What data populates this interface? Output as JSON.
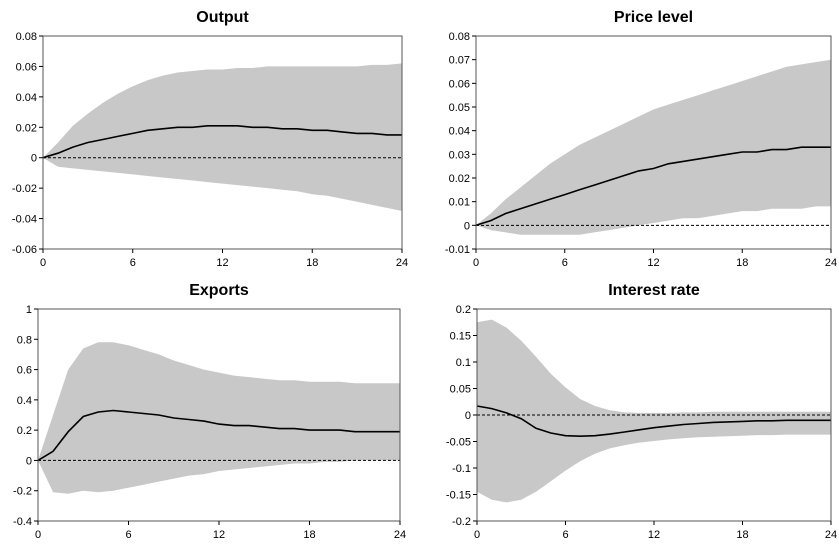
{
  "chart_data": [
    {
      "type": "line",
      "title": "Output",
      "x": [
        0,
        1,
        2,
        3,
        4,
        5,
        6,
        7,
        8,
        9,
        10,
        11,
        12,
        13,
        14,
        15,
        16,
        17,
        18,
        19,
        20,
        21,
        22,
        23,
        24
      ],
      "xticks": [
        0,
        6,
        12,
        18,
        24
      ],
      "ylim": [
        -0.06,
        0.08
      ],
      "yticks": [
        -0.06,
        -0.04,
        -0.02,
        0,
        0.02,
        0.04,
        0.06,
        0.08
      ],
      "ytick_labels": [
        "-0.06",
        "-0.04",
        "-0.02",
        "0",
        "0.02",
        "0.04",
        "0.06",
        "0.08"
      ],
      "colors": {
        "band": "#c8c8c8",
        "line": "#000000",
        "zero": "#000000"
      },
      "series": [
        {
          "role": "band",
          "upper": [
            0,
            0.01,
            0.021,
            0.029,
            0.036,
            0.042,
            0.047,
            0.051,
            0.054,
            0.056,
            0.057,
            0.058,
            0.058,
            0.059,
            0.059,
            0.06,
            0.06,
            0.06,
            0.06,
            0.06,
            0.06,
            0.06,
            0.061,
            0.061,
            0.062
          ],
          "lower": [
            0,
            -0.006,
            -0.007,
            -0.008,
            -0.009,
            -0.01,
            -0.011,
            -0.012,
            -0.013,
            -0.014,
            -0.015,
            -0.016,
            -0.017,
            -0.018,
            -0.019,
            -0.02,
            -0.021,
            -0.022,
            -0.024,
            -0.025,
            -0.027,
            -0.029,
            -0.031,
            -0.033,
            -0.035
          ]
        },
        {
          "role": "line",
          "values": [
            0,
            0.003,
            0.007,
            0.01,
            0.012,
            0.014,
            0.016,
            0.018,
            0.019,
            0.02,
            0.02,
            0.021,
            0.021,
            0.021,
            0.02,
            0.02,
            0.019,
            0.019,
            0.018,
            0.018,
            0.017,
            0.016,
            0.016,
            0.015,
            0.015
          ]
        }
      ]
    },
    {
      "type": "line",
      "title": "Price level",
      "x": [
        0,
        1,
        2,
        3,
        4,
        5,
        6,
        7,
        8,
        9,
        10,
        11,
        12,
        13,
        14,
        15,
        16,
        17,
        18,
        19,
        20,
        21,
        22,
        23,
        24
      ],
      "xticks": [
        0,
        6,
        12,
        18,
        24
      ],
      "ylim": [
        -0.01,
        0.08
      ],
      "yticks": [
        -0.01,
        0,
        0.01,
        0.02,
        0.03,
        0.04,
        0.05,
        0.06,
        0.07,
        0.08
      ],
      "ytick_labels": [
        "-0.01",
        "0",
        "0.01",
        "0.02",
        "0.03",
        "0.04",
        "0.05",
        "0.06",
        "0.07",
        "0.08"
      ],
      "colors": {
        "band": "#c8c8c8",
        "line": "#000000",
        "zero": "#000000"
      },
      "series": [
        {
          "role": "band",
          "upper": [
            0,
            0.005,
            0.011,
            0.016,
            0.021,
            0.026,
            0.03,
            0.034,
            0.037,
            0.04,
            0.043,
            0.046,
            0.049,
            0.051,
            0.053,
            0.055,
            0.057,
            0.059,
            0.061,
            0.063,
            0.065,
            0.067,
            0.068,
            0.069,
            0.07
          ],
          "lower": [
            0,
            -0.002,
            -0.003,
            -0.004,
            -0.004,
            -0.004,
            -0.004,
            -0.004,
            -0.003,
            -0.002,
            -0.001,
            0,
            0.001,
            0.002,
            0.003,
            0.003,
            0.004,
            0.005,
            0.006,
            0.006,
            0.007,
            0.007,
            0.007,
            0.008,
            0.008
          ]
        },
        {
          "role": "line",
          "values": [
            0,
            0.002,
            0.005,
            0.007,
            0.009,
            0.011,
            0.013,
            0.015,
            0.017,
            0.019,
            0.021,
            0.023,
            0.024,
            0.026,
            0.027,
            0.028,
            0.029,
            0.03,
            0.031,
            0.031,
            0.032,
            0.032,
            0.033,
            0.033,
            0.033
          ]
        }
      ]
    },
    {
      "type": "line",
      "title": "Exports",
      "x": [
        0,
        1,
        2,
        3,
        4,
        5,
        6,
        7,
        8,
        9,
        10,
        11,
        12,
        13,
        14,
        15,
        16,
        17,
        18,
        19,
        20,
        21,
        22,
        23,
        24
      ],
      "xticks": [
        0,
        6,
        12,
        18,
        24
      ],
      "ylim": [
        -0.4,
        1
      ],
      "yticks": [
        -0.4,
        -0.2,
        0,
        0.2,
        0.4,
        0.6,
        0.8,
        1
      ],
      "ytick_labels": [
        "-0.4",
        "-0.2",
        "0",
        "0.2",
        "0.4",
        "0.6",
        "0.8",
        "1"
      ],
      "colors": {
        "band": "#c8c8c8",
        "line": "#000000",
        "zero": "#000000"
      },
      "series": [
        {
          "role": "band",
          "upper": [
            0,
            0.3,
            0.6,
            0.74,
            0.78,
            0.78,
            0.76,
            0.73,
            0.7,
            0.66,
            0.63,
            0.6,
            0.58,
            0.56,
            0.55,
            0.54,
            0.53,
            0.53,
            0.52,
            0.52,
            0.52,
            0.51,
            0.51,
            0.51,
            0.51
          ],
          "lower": [
            0,
            -0.21,
            -0.22,
            -0.2,
            -0.21,
            -0.2,
            -0.18,
            -0.16,
            -0.14,
            -0.12,
            -0.1,
            -0.09,
            -0.07,
            -0.06,
            -0.05,
            -0.04,
            -0.03,
            -0.02,
            -0.02,
            -0.01,
            -0.01,
            0,
            0,
            0,
            0
          ]
        },
        {
          "role": "line",
          "values": [
            0,
            0.06,
            0.19,
            0.29,
            0.32,
            0.33,
            0.32,
            0.31,
            0.3,
            0.28,
            0.27,
            0.26,
            0.24,
            0.23,
            0.23,
            0.22,
            0.21,
            0.21,
            0.2,
            0.2,
            0.2,
            0.19,
            0.19,
            0.19,
            0.19
          ]
        }
      ]
    },
    {
      "type": "line",
      "title": "Interest rate",
      "x": [
        0,
        1,
        2,
        3,
        4,
        5,
        6,
        7,
        8,
        9,
        10,
        11,
        12,
        13,
        14,
        15,
        16,
        17,
        18,
        19,
        20,
        21,
        22,
        23,
        24
      ],
      "xticks": [
        0,
        6,
        12,
        18,
        24
      ],
      "ylim": [
        -0.2,
        0.2
      ],
      "yticks": [
        -0.2,
        -0.15,
        -0.1,
        -0.05,
        0,
        0.05,
        0.1,
        0.15,
        0.2
      ],
      "ytick_labels": [
        "-0.2",
        "-0.15",
        "-0.1",
        "-0.05",
        "0",
        "0.05",
        "0.1",
        "0.15",
        "0.2"
      ],
      "colors": {
        "band": "#c8c8c8",
        "line": "#000000",
        "zero": "#000000"
      },
      "series": [
        {
          "role": "band",
          "upper": [
            0.175,
            0.18,
            0.165,
            0.14,
            0.11,
            0.078,
            0.052,
            0.03,
            0.017,
            0.009,
            0.005,
            0.004,
            0.004,
            0.004,
            0.005,
            0.005,
            0.006,
            0.006,
            0.006,
            0.006,
            0.006,
            0.006,
            0.006,
            0.006,
            0.006
          ],
          "lower": [
            -0.145,
            -0.16,
            -0.165,
            -0.16,
            -0.145,
            -0.125,
            -0.105,
            -0.087,
            -0.073,
            -0.063,
            -0.057,
            -0.052,
            -0.049,
            -0.046,
            -0.044,
            -0.042,
            -0.041,
            -0.04,
            -0.039,
            -0.038,
            -0.038,
            -0.037,
            -0.037,
            -0.037,
            -0.037
          ]
        },
        {
          "role": "line",
          "values": [
            0.017,
            0.012,
            0.004,
            -0.007,
            -0.025,
            -0.034,
            -0.039,
            -0.04,
            -0.039,
            -0.036,
            -0.032,
            -0.028,
            -0.024,
            -0.021,
            -0.018,
            -0.016,
            -0.014,
            -0.013,
            -0.012,
            -0.011,
            -0.011,
            -0.01,
            -0.01,
            -0.01,
            -0.01
          ]
        }
      ]
    }
  ]
}
